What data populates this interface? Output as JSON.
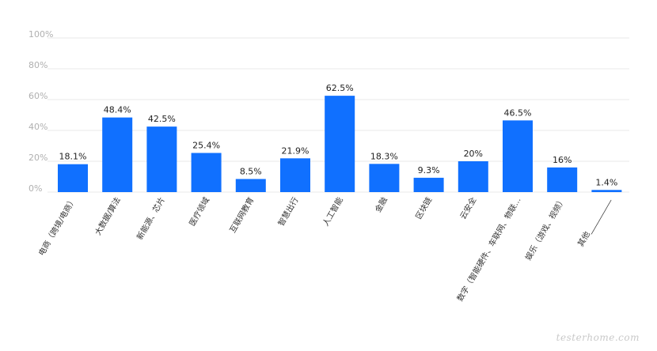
{
  "chart_data": {
    "type": "bar",
    "categories": [
      "电商（跨境/电商）",
      "大数据/算法",
      "新能源、芯片",
      "医疗领域",
      "互联网教育",
      "智慧出行",
      "人工智能",
      "金融",
      "区块链",
      "云安全",
      "数字（智能硬件、车联网、物联…",
      "娱乐（游戏、视频）",
      "其他__________"
    ],
    "values": [
      18.1,
      48.4,
      42.5,
      25.4,
      8.5,
      21.9,
      62.5,
      18.3,
      9.3,
      20,
      46.5,
      16,
      1.4
    ],
    "value_labels": [
      "18.1%",
      "48.4%",
      "42.5%",
      "25.4%",
      "8.5%",
      "21.9%",
      "62.5%",
      "18.3%",
      "9.3%",
      "20%",
      "46.5%",
      "16%",
      "1.4%"
    ],
    "y_ticks": [
      "0%",
      "20%",
      "40%",
      "60%",
      "80%",
      "100%"
    ],
    "ylim": [
      0,
      100
    ],
    "grid": true,
    "bar_color": "#1070ff"
  },
  "watermark": "testerhome.com"
}
